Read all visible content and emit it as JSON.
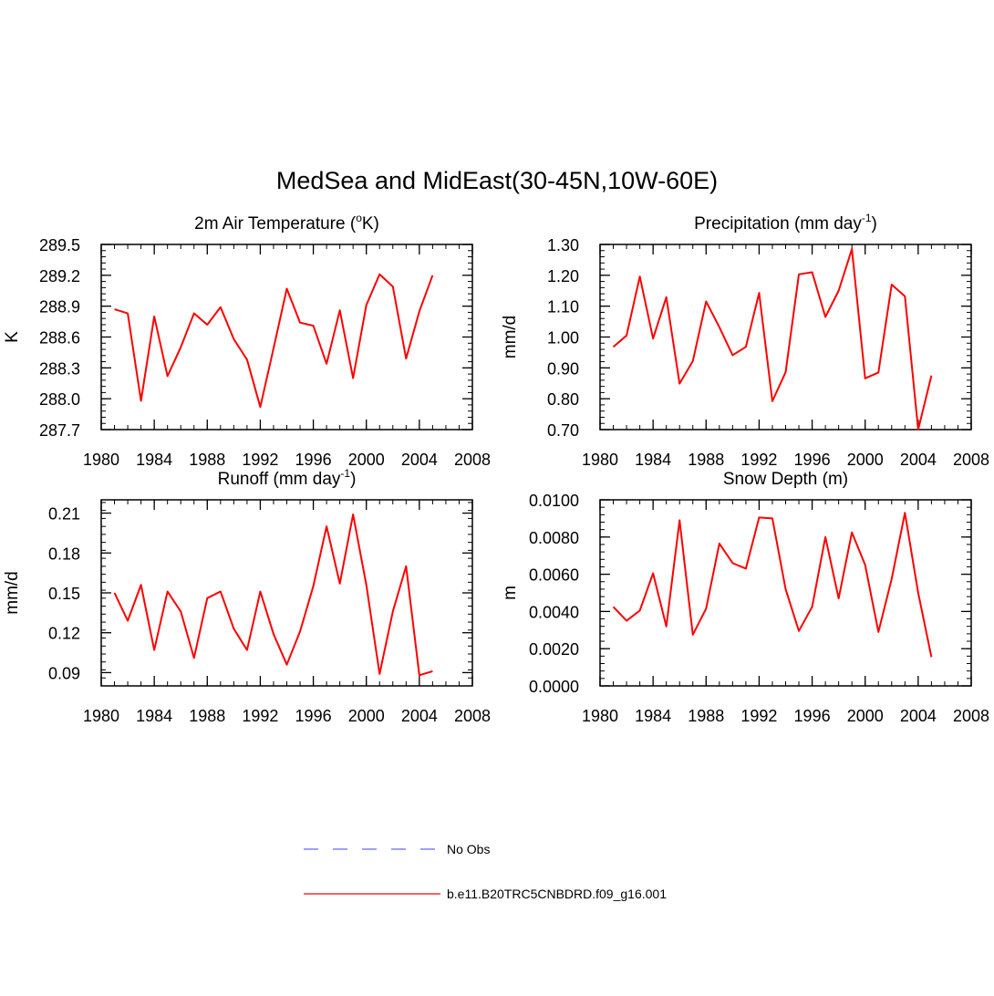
{
  "figure": {
    "title": "MedSea and MidEast(30-45N,10W-60E)"
  },
  "legend": {
    "entries": [
      {
        "label": "No Obs",
        "color": "#6666ff",
        "style": "dashed"
      },
      {
        "label": "b.e11.B20TRC5CNBDRD.f09_g16.001",
        "color": "#ff0000",
        "style": "solid"
      }
    ]
  },
  "chart_data": [
    {
      "type": "line",
      "title_pre": "2m Air Temperature (",
      "title_sup": "o",
      "title_post": "K)",
      "xlabel": "",
      "ylabel": "K",
      "xlim": [
        1980,
        2008
      ],
      "ylim": [
        287.7,
        289.5
      ],
      "xticks": [
        1980,
        1984,
        1988,
        1992,
        1996,
        2000,
        2004,
        2008
      ],
      "xtick_labels": [
        "1980",
        "1984",
        "1988",
        "1992",
        "1996",
        "2000",
        "2004",
        "2008"
      ],
      "yticks": [
        287.7,
        288.0,
        288.3,
        288.6,
        288.9,
        289.2,
        289.5
      ],
      "ytick_labels": [
        "287.7",
        "288.0",
        "288.3",
        "288.6",
        "288.9",
        "289.2",
        "289.5"
      ],
      "minor_x": 1,
      "minor_y": 0.06,
      "color": "#ff0000",
      "series": [
        {
          "name": "b.e11.B20TRC5CNBDRD.f09_g16.001",
          "x": [
            1981,
            1982,
            1983,
            1984,
            1985,
            1986,
            1987,
            1988,
            1989,
            1990,
            1991,
            1992,
            1993,
            1994,
            1995,
            1996,
            1997,
            1998,
            1999,
            2000,
            2001,
            2002,
            2003,
            2004,
            2005
          ],
          "values": [
            288.87,
            288.83,
            287.98,
            288.8,
            288.22,
            288.5,
            288.83,
            288.72,
            288.89,
            288.58,
            288.38,
            287.92,
            288.49,
            289.07,
            288.74,
            288.71,
            288.34,
            288.86,
            288.2,
            288.91,
            289.21,
            289.09,
            288.39,
            288.85,
            289.2
          ]
        }
      ]
    },
    {
      "type": "line",
      "title_pre": "Precipitation (mm day",
      "title_sup": "-1",
      "title_post": ")",
      "xlabel": "",
      "ylabel": "mm/d",
      "xlim": [
        1980,
        2008
      ],
      "ylim": [
        0.7,
        1.3
      ],
      "xticks": [
        1980,
        1984,
        1988,
        1992,
        1996,
        2000,
        2004,
        2008
      ],
      "xtick_labels": [
        "1980",
        "1984",
        "1988",
        "1992",
        "1996",
        "2000",
        "2004",
        "2008"
      ],
      "yticks": [
        0.7,
        0.8,
        0.9,
        1.0,
        1.1,
        1.2,
        1.3
      ],
      "ytick_labels": [
        "0.70",
        "0.80",
        "0.90",
        "1.00",
        "1.10",
        "1.20",
        "1.30"
      ],
      "minor_x": 1,
      "minor_y": 0.02,
      "color": "#ff0000",
      "series": [
        {
          "name": "b.e11.B20TRC5CNBDRD.f09_g16.001",
          "x": [
            1981,
            1982,
            1983,
            1984,
            1985,
            1986,
            1987,
            1988,
            1989,
            1990,
            1991,
            1992,
            1993,
            1994,
            1995,
            1996,
            1997,
            1998,
            1999,
            2000,
            2001,
            2002,
            2003,
            2004,
            2005
          ],
          "values": [
            0.968,
            1.005,
            1.196,
            0.995,
            1.129,
            0.849,
            0.922,
            1.115,
            1.032,
            0.941,
            0.968,
            1.143,
            0.792,
            0.886,
            1.203,
            1.21,
            1.065,
            1.15,
            1.285,
            0.866,
            0.885,
            1.17,
            1.132,
            0.7,
            0.875
          ]
        }
      ]
    },
    {
      "type": "line",
      "title_pre": "Runoff (mm day",
      "title_sup": "-1",
      "title_post": ")",
      "xlabel": "",
      "ylabel": "mm/d",
      "xlim": [
        1980,
        2008
      ],
      "ylim": [
        0.08,
        0.22
      ],
      "xticks": [
        1980,
        1984,
        1988,
        1992,
        1996,
        2000,
        2004,
        2008
      ],
      "xtick_labels": [
        "1980",
        "1984",
        "1988",
        "1992",
        "1996",
        "2000",
        "2004",
        "2008"
      ],
      "yticks": [
        0.09,
        0.12,
        0.15,
        0.18,
        0.21
      ],
      "ytick_labels": [
        "0.09",
        "0.12",
        "0.15",
        "0.18",
        "0.21"
      ],
      "minor_x": 1,
      "minor_y": 0.006,
      "color": "#ff0000",
      "series": [
        {
          "name": "b.e11.B20TRC5CNBDRD.f09_g16.001",
          "x": [
            1981,
            1982,
            1983,
            1984,
            1985,
            1986,
            1987,
            1988,
            1989,
            1990,
            1991,
            1992,
            1993,
            1994,
            1995,
            1996,
            1997,
            1998,
            1999,
            2000,
            2001,
            2002,
            2003,
            2004,
            2005
          ],
          "values": [
            0.15,
            0.129,
            0.156,
            0.107,
            0.151,
            0.136,
            0.101,
            0.146,
            0.151,
            0.123,
            0.107,
            0.151,
            0.119,
            0.096,
            0.121,
            0.155,
            0.2,
            0.157,
            0.209,
            0.156,
            0.089,
            0.136,
            0.17,
            0.088,
            0.091
          ]
        }
      ]
    },
    {
      "type": "line",
      "title_pre": "Snow Depth (m)",
      "title_sup": "",
      "title_post": "",
      "xlabel": "",
      "ylabel": "m",
      "xlim": [
        1980,
        2008
      ],
      "ylim": [
        0.0,
        0.01
      ],
      "xticks": [
        1980,
        1984,
        1988,
        1992,
        1996,
        2000,
        2004,
        2008
      ],
      "xtick_labels": [
        "1980",
        "1984",
        "1988",
        "1992",
        "1996",
        "2000",
        "2004",
        "2008"
      ],
      "yticks": [
        0.0,
        0.002,
        0.004,
        0.006,
        0.008,
        0.01
      ],
      "ytick_labels": [
        "0.0000",
        "0.0020",
        "0.0040",
        "0.0060",
        "0.0080",
        "0.0100"
      ],
      "minor_x": 1,
      "minor_y": 0.0004,
      "color": "#ff0000",
      "series": [
        {
          "name": "b.e11.B20TRC5CNBDRD.f09_g16.001",
          "x": [
            1981,
            1982,
            1983,
            1984,
            1985,
            1986,
            1987,
            1988,
            1989,
            1990,
            1991,
            1992,
            1993,
            1994,
            1995,
            1996,
            1997,
            1998,
            1999,
            2000,
            2001,
            2002,
            2003,
            2004,
            2005
          ],
          "values": [
            0.00425,
            0.0035,
            0.00405,
            0.00605,
            0.0032,
            0.0089,
            0.00275,
            0.00415,
            0.00765,
            0.0066,
            0.0063,
            0.00905,
            0.009,
            0.0052,
            0.00295,
            0.00425,
            0.008,
            0.0047,
            0.00825,
            0.0065,
            0.0029,
            0.00575,
            0.0093,
            0.005,
            0.00155
          ]
        }
      ]
    }
  ]
}
